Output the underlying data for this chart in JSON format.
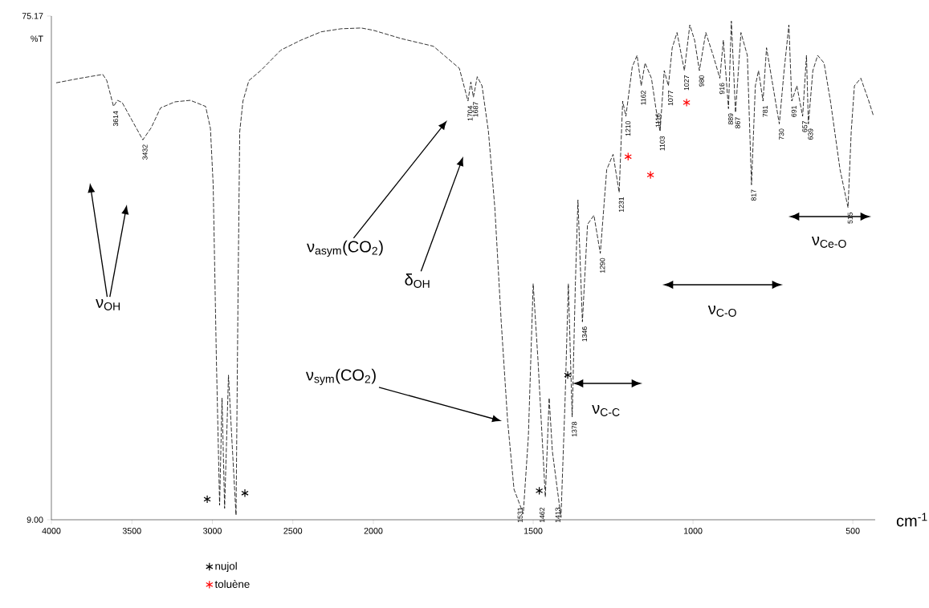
{
  "chart_data": [
    {
      "type": "line",
      "ylabel": "%T",
      "xlim": [
        4000,
        2000
      ],
      "ylim": [
        9,
        75.17
      ],
      "xticks": [
        4000,
        3500,
        3000,
        2500,
        2000
      ],
      "yticks": [
        {
          "value": 9,
          "label": "9.00"
        },
        75.17
      ],
      "series": [
        {
          "type": "line",
          "color": "#000000",
          "line_style": "dashed",
          "x": [
            3970,
            3820,
            3681,
            3656,
            3614,
            3590,
            3560,
            3500,
            3432,
            3380,
            3322,
            3232,
            3137,
            3042,
            3012,
            2995,
            2975,
            2955,
            2940,
            2924,
            2900,
            2880,
            2853,
            2840,
            2830,
            2810,
            2773,
            2700,
            2574,
            2450,
            2324,
            2200,
            2075,
            2000
          ],
          "values": [
            66.4,
            67.0,
            67.5,
            66.7,
            63.3,
            64.1,
            63.8,
            61.5,
            58.9,
            60.5,
            63.1,
            63.9,
            64.1,
            63.3,
            60.4,
            53.0,
            30,
            10.9,
            25,
            10.5,
            28,
            20,
            9.6,
            40,
            60,
            64,
            66.7,
            68,
            70.7,
            72,
            73.1,
            73.5,
            73.6,
            73.3
          ]
        },
        {
          "type": "scatter",
          "color": "#000000",
          "marker": "cross",
          "x": [
            3032,
            2798
          ],
          "values": [
            11.7,
            12.5
          ]
        }
      ],
      "annotations": [
        "ν$_{OH}$",
        {
          "text": "3614",
          "x": 3614,
          "y": 63.3
        },
        {
          "text": "3432",
          "x": 3432,
          "y": 58.9
        }
      ]
    },
    {
      "type": "line",
      "xlabel": "cm$^{-1}$",
      "tick_labels": "x",
      "xlim": [
        2000,
        430
      ],
      "ylim": [
        9,
        75.17
      ],
      "xticks": [
        1500,
        1000,
        500
      ],
      "legend": "bottom left",
      "series": [
        {
          "type": "line",
          "color": "#000000",
          "line_style": "dashed",
          "x": [
            2000,
            1912,
            1812,
            1731,
            1704,
            1695,
            1687,
            1675,
            1660,
            1640,
            1620,
            1600,
            1580,
            1560,
            1531,
            1515,
            1500,
            1485,
            1462,
            1450,
            1440,
            1413,
            1400,
            1390,
            1378,
            1368,
            1360,
            1346,
            1330,
            1310,
            1290,
            1270,
            1250,
            1231,
            1220,
            1210,
            1190,
            1175,
            1162,
            1150,
            1130,
            1116,
            1103,
            1090,
            1077,
            1065,
            1050,
            1027,
            1010,
            995,
            980,
            960,
            937,
            916,
            905,
            889,
            880,
            867,
            850,
            830,
            817,
            805,
            795,
            781,
            770,
            750,
            730,
            715,
            700,
            691,
            675,
            657,
            645,
            639,
            625,
            610,
            590,
            570,
            540,
            515,
            505,
            495,
            475,
            450,
            435
          ],
          "values": [
            73.3,
            72.2,
            71.2,
            68.3,
            64,
            66.5,
            64.5,
            67.2,
            66,
            60,
            50,
            35,
            22,
            13,
            9.8,
            20,
            40,
            30,
            12,
            25,
            18,
            9.3,
            25,
            40,
            22.5,
            40,
            51,
            35,
            47.8,
            49,
            44,
            55,
            57,
            52,
            64,
            62,
            68.5,
            70,
            66,
            69,
            67,
            63,
            60,
            68,
            66,
            71,
            73,
            68,
            74,
            72,
            68,
            73,
            70,
            67,
            72,
            63,
            74.5,
            62.5,
            73,
            70,
            53,
            66,
            68,
            64,
            71,
            66,
            61,
            68,
            74,
            64,
            66,
            62,
            70,
            61,
            68,
            70,
            69,
            64,
            55,
            50,
            60,
            66,
            67,
            64,
            62
          ]
        },
        {
          "type": "scatter",
          "name": "nujol",
          "color": "#000000",
          "marker": "cross",
          "x": [
            1481,
            1392
          ],
          "values": [
            12.8,
            28
          ]
        },
        {
          "type": "scatter",
          "name": "toluène",
          "color": "#ff0000",
          "marker": "cross",
          "x": [
            1203,
            1133,
            1020
          ],
          "values": [
            56.7,
            54.3,
            63.8
          ]
        }
      ],
      "annotations": [
        "ν$_{asym}$(CO$_{2}$)",
        "δ$_{OH}$",
        "ν$_{sym}$(CO$_{2}$)",
        "ν$_{C-C}$",
        "ν$_{C-O}$",
        "ν$_{Ce-O}$",
        {
          "text": "1704",
          "x": 1704,
          "y": 64
        },
        {
          "text": "1687",
          "x": 1687,
          "y": 64.5
        },
        {
          "text": "1531",
          "x": 1531,
          "y": 9.8
        },
        {
          "text": "1462",
          "x": 1462,
          "y": 12
        },
        {
          "text": "1413",
          "x": 1413,
          "y": 9.3
        },
        {
          "text": "1378",
          "x": 1378,
          "y": 22.5
        },
        {
          "text": "1346",
          "x": 1346,
          "y": 35
        },
        {
          "text": "1290",
          "x": 1290,
          "y": 44
        },
        {
          "text": "1231",
          "x": 1231,
          "y": 52
        },
        {
          "text": "1210",
          "x": 1210,
          "y": 62
        },
        {
          "text": "1162",
          "x": 1162,
          "y": 66
        },
        {
          "text": "1116",
          "x": 1116,
          "y": 63
        },
        {
          "text": "1103",
          "x": 1103,
          "y": 60
        },
        {
          "text": "1077",
          "x": 1077,
          "y": 66
        },
        {
          "text": "1027",
          "x": 1027,
          "y": 68
        },
        {
          "text": "980",
          "x": 980,
          "y": 68
        },
        {
          "text": "916",
          "x": 916,
          "y": 67
        },
        {
          "text": "889",
          "x": 889,
          "y": 63
        },
        {
          "text": "867",
          "x": 867,
          "y": 62.5
        },
        {
          "text": "817",
          "x": 817,
          "y": 53
        },
        {
          "text": "781",
          "x": 781,
          "y": 64
        },
        {
          "text": "730",
          "x": 730,
          "y": 61
        },
        {
          "text": "691",
          "x": 691,
          "y": 64
        },
        {
          "text": "657",
          "x": 657,
          "y": 62
        },
        {
          "text": "639",
          "x": 639,
          "y": 61
        },
        {
          "text": "515",
          "x": 515,
          "y": 50
        }
      ]
    }
  ]
}
